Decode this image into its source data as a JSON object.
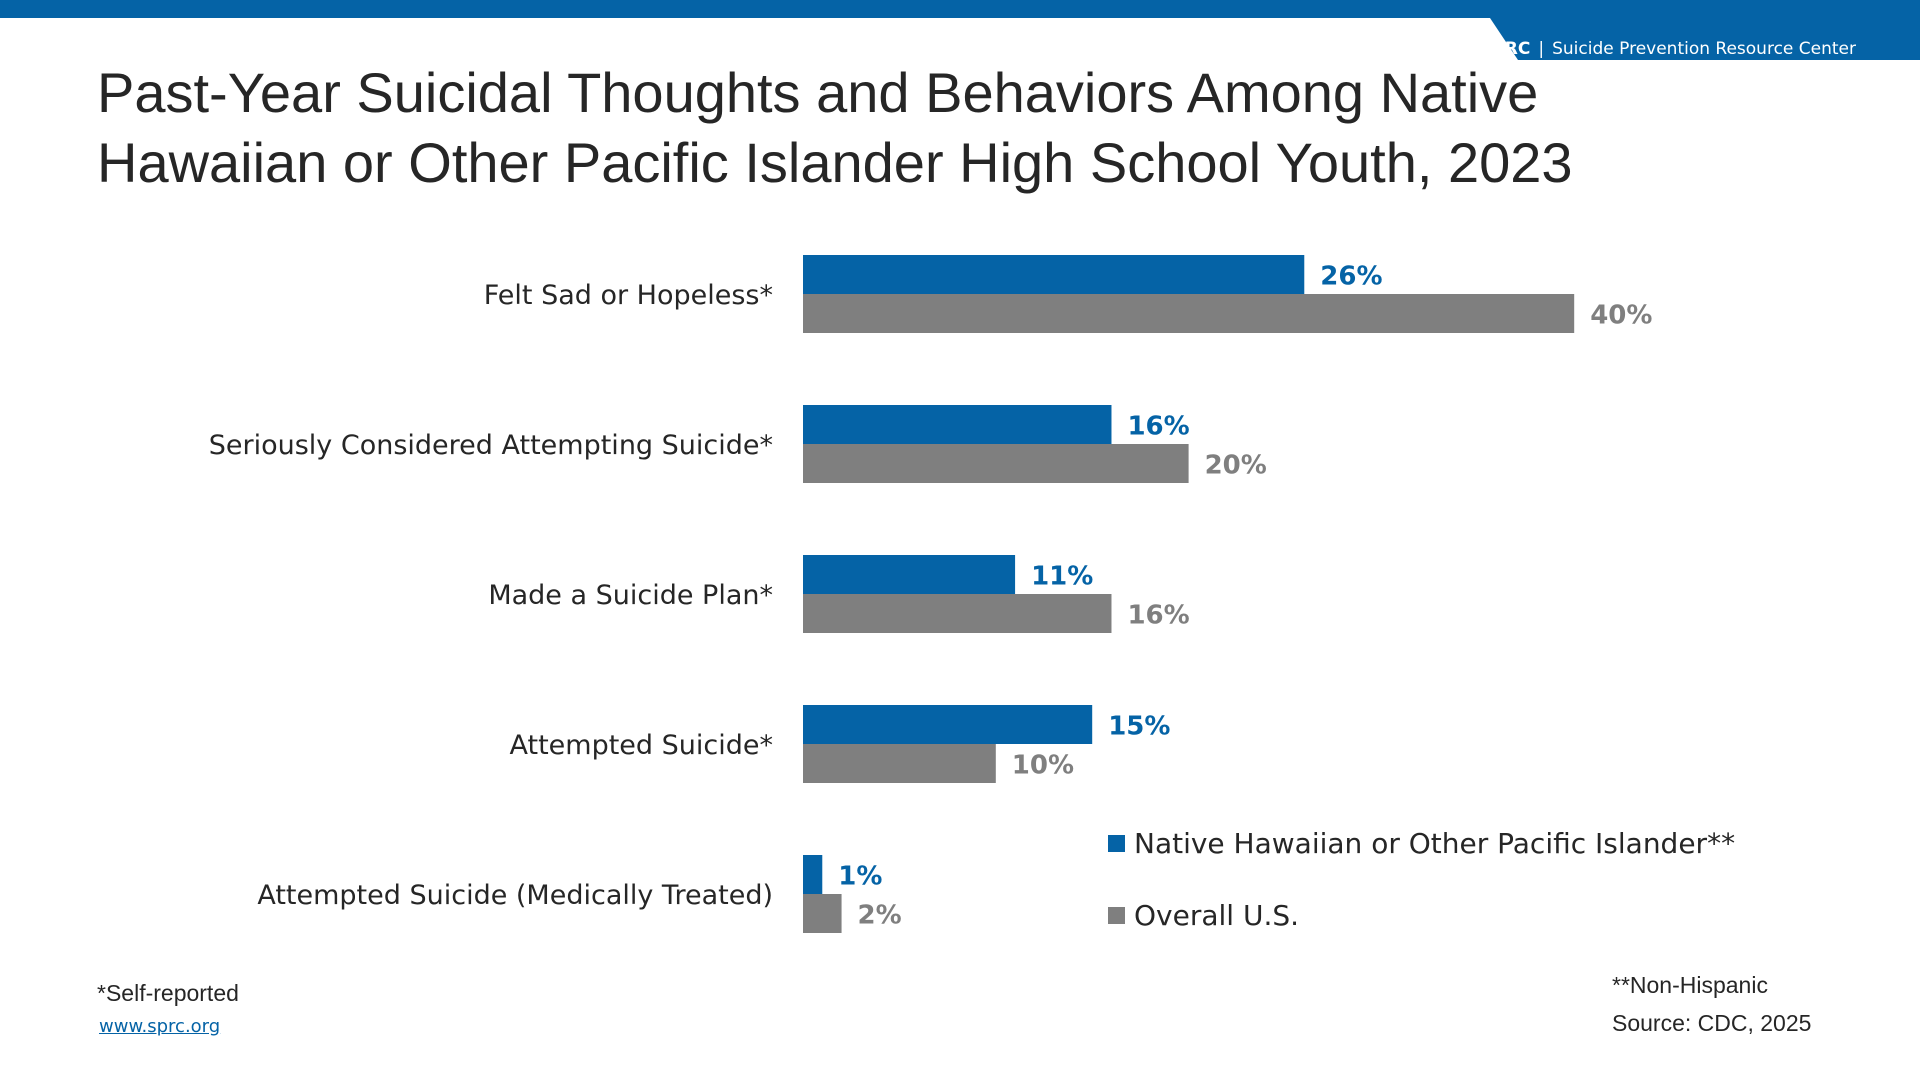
{
  "header": {
    "brand_abbr": "SPRC",
    "brand_separator": "|",
    "brand_name": "Suicide Prevention Resource Center"
  },
  "colors": {
    "brand_blue": "#0563a6",
    "overall_gray": "#7f7f7f",
    "text": "#262626"
  },
  "chart_data": {
    "type": "bar",
    "orientation": "horizontal",
    "title": "Past-Year Suicidal Thoughts and Behaviors Among Native Hawaiian or Other Pacific Islander High School Youth, 2023",
    "categories": [
      "Felt Sad or Hopeless*",
      "Seriously Considered Attempting Suicide*",
      "Made a Suicide Plan*",
      "Attempted Suicide*",
      "Attempted Suicide (Medically Treated)"
    ],
    "series": [
      {
        "name": "Native Hawaiian or Other Pacific Islander**",
        "values": [
          26,
          16,
          11,
          15,
          1
        ],
        "labels": [
          "26%",
          "16%",
          "11%",
          "15%",
          "1%"
        ],
        "color": "#0563a6"
      },
      {
        "name": "Overall U.S.",
        "values": [
          40,
          20,
          16,
          10,
          2
        ],
        "labels": [
          "40%",
          "20%",
          "16%",
          "10%",
          "2%"
        ],
        "color": "#7f7f7f"
      }
    ],
    "xlim": [
      0,
      40
    ],
    "grid": false,
    "legend_position": "bottom-right",
    "xlabel": "",
    "ylabel": ""
  },
  "footer": {
    "footnote": "*Self-reported",
    "link": "www.sprc.org",
    "note": "**Non-Hispanic",
    "source": "Source: CDC, 2025"
  }
}
